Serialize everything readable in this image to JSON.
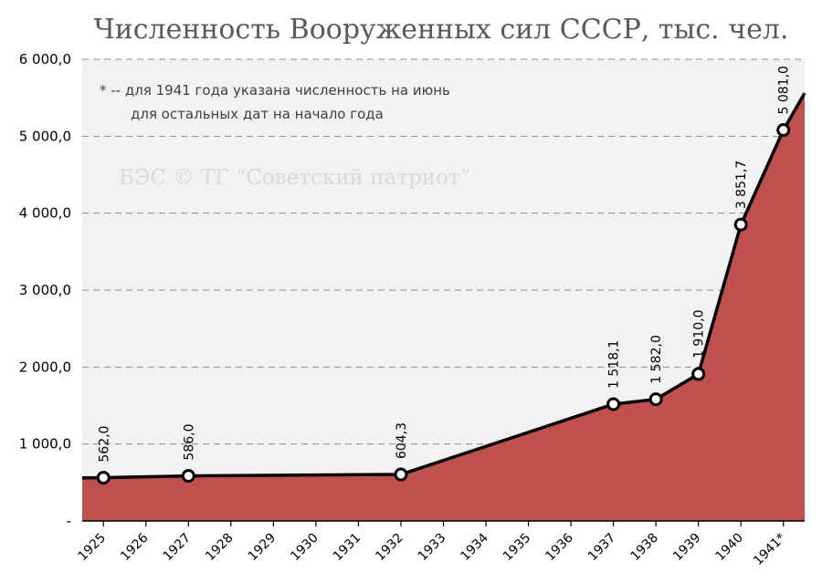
{
  "chart_data": {
    "type": "area",
    "title": "Численность Вооруженных сил СССР, тыс. чел.",
    "note_lines": [
      "* -- для 1941 года указана численность на июнь",
      "для остальных дат на начало года"
    ],
    "watermark": "БЭС © ТГ “Советский патриот”",
    "categories": [
      "1925",
      "1926",
      "1927",
      "1928",
      "1929",
      "1930",
      "1931",
      "1932",
      "1933",
      "1934",
      "1935",
      "1936",
      "1937",
      "1938",
      "1939",
      "1940",
      "1941*"
    ],
    "points": [
      {
        "x": 1925,
        "y": 562.0,
        "label": "562,0"
      },
      {
        "x": 1927,
        "y": 586.0,
        "label": "586,0"
      },
      {
        "x": 1932,
        "y": 604.3,
        "label": "604,3"
      },
      {
        "x": 1937,
        "y": 1518.1,
        "label": "1 518,1"
      },
      {
        "x": 1938,
        "y": 1582.0,
        "label": "1 582,0"
      },
      {
        "x": 1939,
        "y": 1910.0,
        "label": "1 910,0"
      },
      {
        "x": 1940,
        "y": 3851.7,
        "label": "3 851,7"
      },
      {
        "x": 1941,
        "y": 5081.0,
        "label": "5 081,0"
      }
    ],
    "line_start": {
      "x": 1924.5,
      "y": 560.0
    },
    "line_end": {
      "x": 1941.5,
      "y": 5560.0
    },
    "yticks": [
      {
        "value": 0,
        "label": "-"
      },
      {
        "value": 1000,
        "label": "1 000,0"
      },
      {
        "value": 2000,
        "label": "2 000,0"
      },
      {
        "value": 3000,
        "label": "3 000,0"
      },
      {
        "value": 4000,
        "label": "4 000,0"
      },
      {
        "value": 5000,
        "label": "5 000,0"
      },
      {
        "value": 6000,
        "label": "6 000,0"
      }
    ],
    "ylim": [
      0,
      6000
    ],
    "xlim": [
      1924.5,
      1941.5
    ],
    "grid": true,
    "colors": {
      "area": "#c0504d",
      "line": "#000000",
      "plot_bg": "#f2f2f2",
      "grid": "#8c8c8c"
    }
  }
}
